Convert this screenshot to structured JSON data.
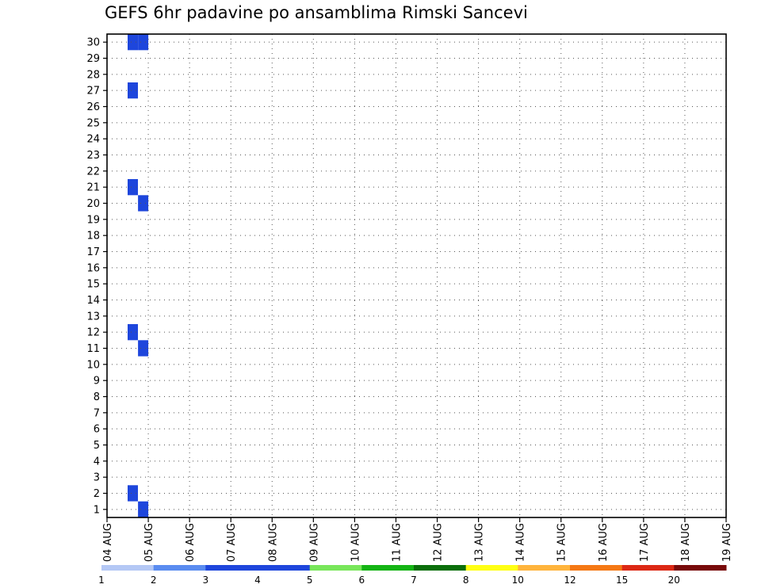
{
  "title": "GEFS 6hr padavine po ansamblima Rimski Sancevi",
  "chart_data": {
    "type": "heatmap",
    "title": "GEFS 6hr padavine po ansamblima Rimski Sancevi",
    "x_ticks": [
      "04 AUG",
      "05 AUG",
      "06 AUG",
      "07 AUG",
      "08 AUG",
      "09 AUG",
      "10 AUG",
      "11 AUG",
      "12 AUG",
      "13 AUG",
      "14 AUG",
      "15 AUG",
      "16 AUG",
      "17 AUG",
      "18 AUG",
      "19 AUG"
    ],
    "y_ticks": [
      1,
      2,
      3,
      4,
      5,
      6,
      7,
      8,
      9,
      10,
      11,
      12,
      13,
      14,
      15,
      16,
      17,
      18,
      19,
      20,
      21,
      22,
      23,
      24,
      25,
      26,
      27,
      28,
      29,
      30
    ],
    "xlim": [
      0,
      60
    ],
    "ylim": [
      0,
      30
    ],
    "grid": true,
    "colorbar": {
      "labels": [
        "1",
        "2",
        "3",
        "4",
        "5",
        "6",
        "7",
        "8",
        "10",
        "12",
        "15",
        "20"
      ],
      "colors": [
        "#b4c8f5",
        "#5a8cf0",
        "#1e46dc",
        "#1e46dc",
        "#78e65a",
        "#14b414",
        "#0a6e0a",
        "#ffff14",
        "#ffb43c",
        "#f57814",
        "#dc2814",
        "#780a0a"
      ]
    },
    "cells": [
      {
        "t": 2,
        "m": 1,
        "v": 2
      },
      {
        "t": 2,
        "m": 11,
        "v": 3
      },
      {
        "t": 2,
        "m": 20,
        "v": 2
      },
      {
        "t": 2,
        "m": 26,
        "v": 2
      },
      {
        "t": 2,
        "m": 29,
        "v": 2
      },
      {
        "t": 3,
        "m": 0,
        "v": 3
      },
      {
        "t": 3,
        "m": 10,
        "v": 2
      },
      {
        "t": 3,
        "m": 19,
        "v": 2
      },
      {
        "t": 3,
        "m": 29,
        "v": 2
      }
    ]
  }
}
